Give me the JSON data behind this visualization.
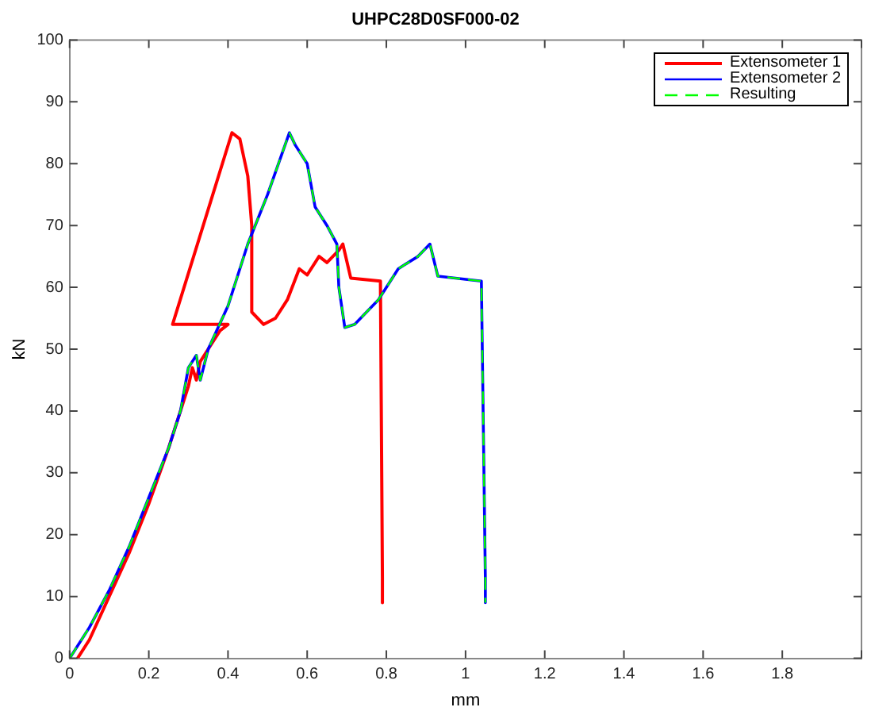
{
  "chart_data": {
    "type": "line",
    "title": "UHPC28D0SF000-02",
    "xlabel": "mm",
    "ylabel": "kN",
    "xlim": [
      0,
      2
    ],
    "xticks": [
      0,
      0.2,
      0.4,
      0.6,
      0.8,
      1,
      1.2,
      1.4,
      1.6,
      1.8,
      {
        "value": 2,
        "label": null
      }
    ],
    "ylim": [
      0,
      100
    ],
    "yticks": [
      0,
      10,
      20,
      30,
      40,
      50,
      60,
      70,
      80,
      90,
      100
    ],
    "grid": false,
    "legend": "top right",
    "marker": "none",
    "series": [
      {
        "name": "Extensometer 1",
        "color": "#ff0000",
        "line_style": "solid",
        "x": [
          0.02,
          0.05,
          0.1,
          0.15,
          0.2,
          0.25,
          0.3,
          0.31,
          0.32,
          0.33,
          0.35,
          0.38,
          0.4,
          0.26,
          0.41,
          0.43,
          0.45,
          0.46,
          0.46,
          0.49,
          0.52,
          0.55,
          0.58,
          0.6,
          0.63,
          0.65,
          0.68,
          0.69,
          0.71,
          0.785,
          0.79,
          0.79
        ],
        "values": [
          0,
          3,
          10,
          17,
          25,
          34,
          44,
          47,
          45,
          48,
          50,
          53,
          54,
          54,
          85,
          84,
          78,
          70,
          56,
          54,
          55,
          58,
          63,
          62,
          65,
          64,
          66,
          67,
          61.5,
          61,
          13,
          9
        ]
      },
      {
        "name": "Extensometer 2",
        "color": "#0000ff",
        "line_style": "solid",
        "x": [
          0,
          0.05,
          0.1,
          0.15,
          0.2,
          0.25,
          0.28,
          0.3,
          0.32,
          0.33,
          0.35,
          0.4,
          0.45,
          0.5,
          0.555,
          0.57,
          0.6,
          0.62,
          0.65,
          0.675,
          0.68,
          0.695,
          0.72,
          0.78,
          0.83,
          0.88,
          0.91,
          0.93,
          1.04,
          1.05,
          1.05
        ],
        "values": [
          0,
          5,
          11,
          18,
          26,
          34,
          40,
          47,
          49,
          45,
          50,
          57,
          67,
          75,
          85,
          83,
          80,
          73,
          70,
          67,
          60,
          53.5,
          54,
          58,
          63,
          65,
          67,
          61.8,
          61,
          13,
          9
        ]
      },
      {
        "name": "Resulting",
        "color": "#00ff00",
        "line_style": "dashed",
        "x": [
          0,
          0.05,
          0.1,
          0.15,
          0.2,
          0.25,
          0.28,
          0.3,
          0.32,
          0.33,
          0.35,
          0.4,
          0.45,
          0.5,
          0.555,
          0.57,
          0.6,
          0.62,
          0.65,
          0.675,
          0.68,
          0.695,
          0.72,
          0.78,
          0.83,
          0.88,
          0.91,
          0.93,
          1.04,
          1.05,
          1.05
        ],
        "values": [
          0,
          5,
          11,
          18,
          26,
          34,
          40,
          47,
          49,
          45,
          50,
          57,
          67,
          75,
          85,
          83,
          80,
          73,
          70,
          67,
          60,
          53.5,
          54,
          58,
          63,
          65,
          67,
          61.8,
          61,
          13,
          9
        ]
      }
    ]
  }
}
